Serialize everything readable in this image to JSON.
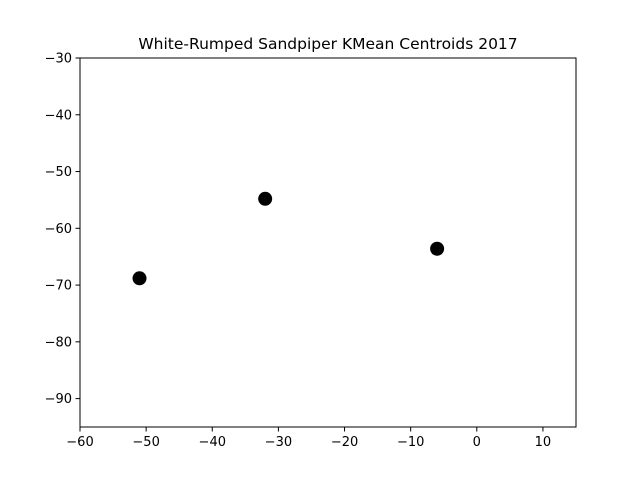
{
  "chart_data": {
    "type": "scatter",
    "title": "White-Rumped Sandpiper KMean Centroids 2017",
    "xlabel": "",
    "ylabel": "",
    "xlim": [
      -60,
      15
    ],
    "ylim": [
      -95,
      -30
    ],
    "x_ticks": [
      -60,
      -50,
      -40,
      -30,
      -20,
      -10,
      0,
      10
    ],
    "y_ticks": [
      -30,
      -40,
      -50,
      -60,
      -70,
      -80,
      -90
    ],
    "x_tick_labels": [
      "−60",
      "−50",
      "−40",
      "−30",
      "−20",
      "−10",
      "0",
      "10"
    ],
    "y_tick_labels": [
      "−30",
      "−40",
      "−50",
      "−60",
      "−70",
      "−80",
      "−90"
    ],
    "grid": false,
    "legend": "none",
    "series": [
      {
        "color": "#000000",
        "marker": "circle",
        "points": [
          {
            "x": -51.0,
            "y": -68.8
          },
          {
            "x": -32.0,
            "y": -54.8
          },
          {
            "x": -6.0,
            "y": -63.6
          }
        ]
      }
    ]
  }
}
